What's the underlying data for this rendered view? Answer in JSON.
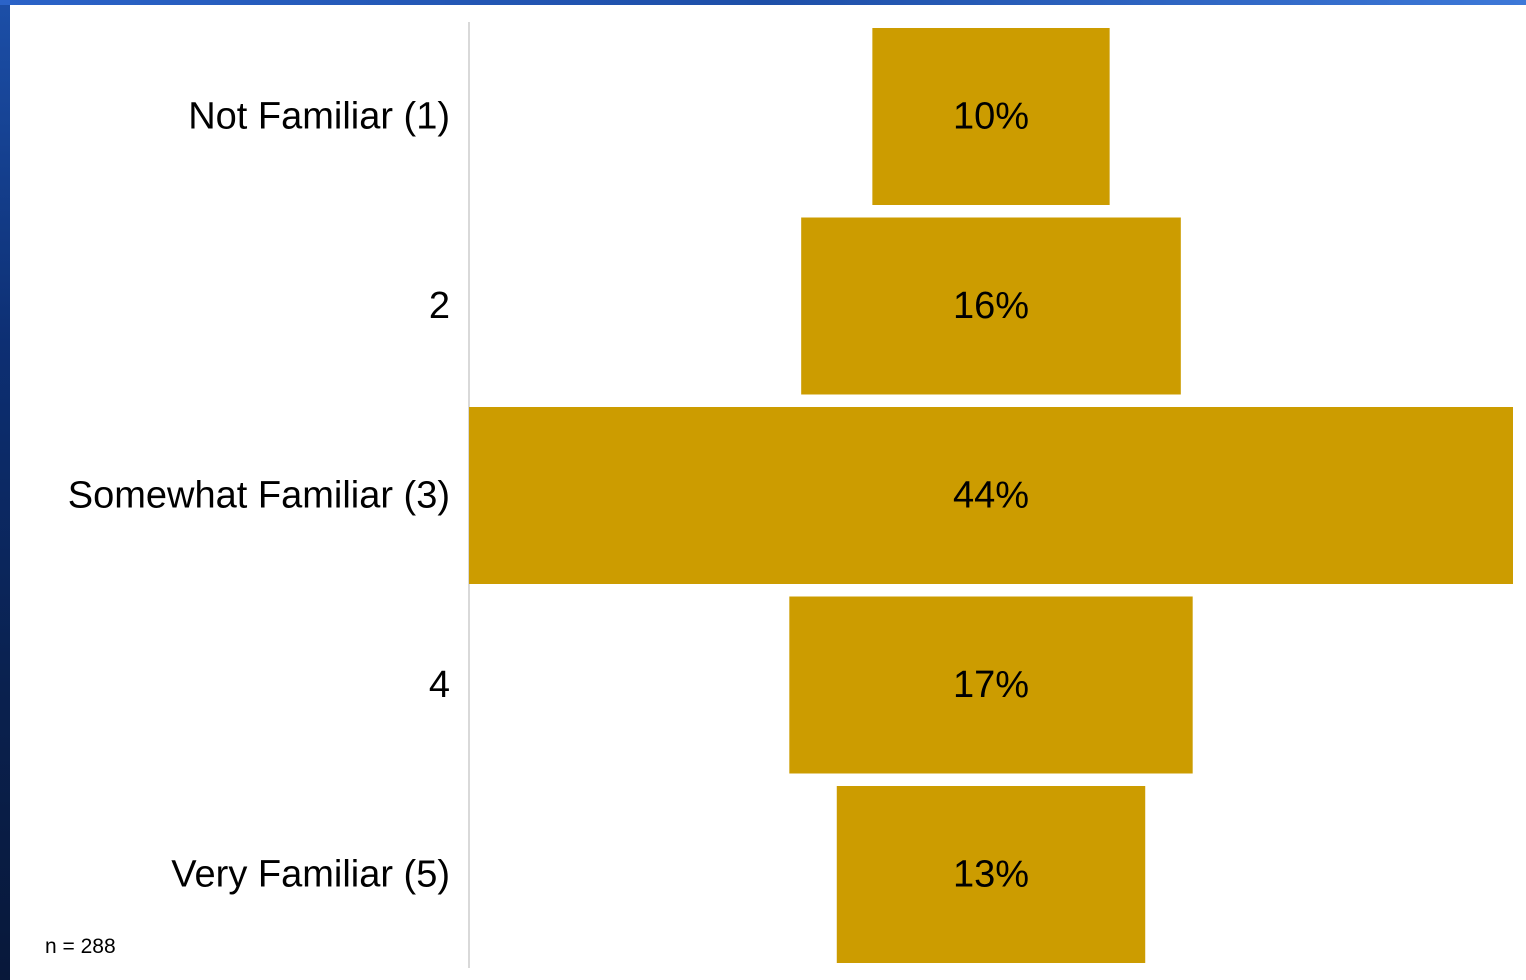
{
  "chart_data": {
    "type": "bar",
    "orientation": "horizontal-centered",
    "categories": [
      "Not Familiar (1)",
      "2",
      "Somewhat Familiar (3)",
      "4",
      "Very Familiar (5)"
    ],
    "values": [
      10,
      16,
      44,
      17,
      13
    ],
    "value_labels": [
      "10%",
      "16%",
      "44%",
      "17%",
      "13%"
    ],
    "unit": "%",
    "grid": false,
    "legend": "none",
    "colors": {
      "bar": "#CC9C00",
      "axis_line": "#D9D9D9"
    }
  },
  "footnote": "n = 288"
}
